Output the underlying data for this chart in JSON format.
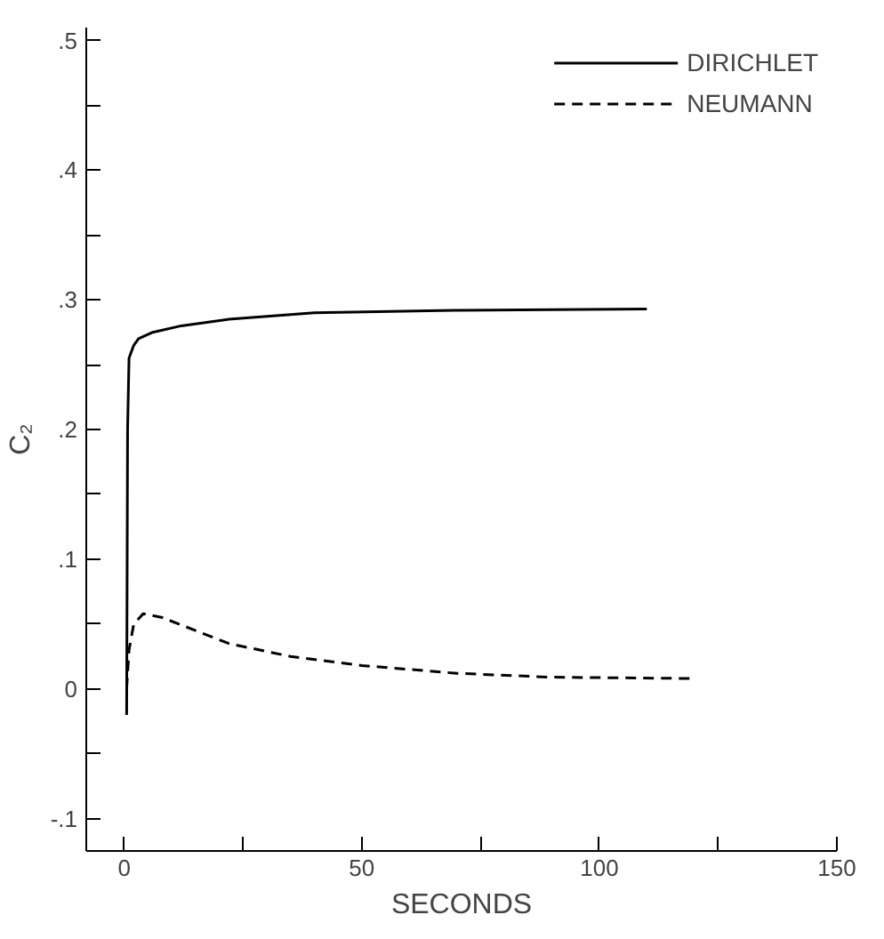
{
  "chart_data": {
    "type": "line",
    "xlabel": "SECONDS",
    "ylabel": "C₂",
    "xlim": [
      -8,
      150
    ],
    "ylim": [
      -0.125,
      0.51
    ],
    "xticks": [
      0,
      {
        "value": 25,
        "label": null
      },
      50,
      {
        "value": 75,
        "label": null
      },
      100,
      {
        "value": 125,
        "label": null
      },
      150
    ],
    "yticks": [
      {
        "value": -0.1,
        "label": "-.1"
      },
      {
        "value": -0.05,
        "label": null
      },
      {
        "value": 0,
        "label": "0"
      },
      {
        "value": 0.05,
        "label": null
      },
      {
        "value": 0.1,
        "label": ".1"
      },
      {
        "value": 0.15,
        "label": null
      },
      {
        "value": 0.2,
        "label": ".2"
      },
      {
        "value": 0.25,
        "label": null
      },
      {
        "value": 0.3,
        "label": ".3"
      },
      {
        "value": 0.35,
        "label": null
      },
      {
        "value": 0.4,
        "label": ".4"
      },
      {
        "value": 0.45,
        "label": null
      },
      {
        "value": 0.5,
        "label": ".5"
      }
    ],
    "grid": false,
    "legend": "top right",
    "marker": "none",
    "series": [
      {
        "name": "DIRICHLET",
        "color": "#000000",
        "line_style": "solid",
        "x": [
          0.5,
          0.7,
          1,
          2,
          3,
          6,
          12,
          22,
          40,
          70,
          110
        ],
        "values": [
          -0.02,
          0.2,
          0.255,
          0.265,
          0.27,
          0.275,
          0.28,
          0.285,
          0.29,
          0.292,
          0.293
        ]
      },
      {
        "name": "NEUMANN",
        "color": "#000000",
        "line_style": "dashed",
        "x": [
          0.5,
          1,
          2,
          4,
          8,
          15,
          22,
          35,
          50,
          70,
          90,
          120
        ],
        "values": [
          0.0,
          0.03,
          0.05,
          0.058,
          0.055,
          0.045,
          0.035,
          0.025,
          0.018,
          0.012,
          0.009,
          0.008
        ]
      }
    ]
  }
}
